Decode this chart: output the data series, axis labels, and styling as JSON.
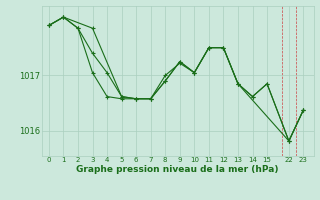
{
  "xlabel": "Graphe pression niveau de la mer (hPa)",
  "background_color": "#cce8dc",
  "line_color": "#1a6e1a",
  "grid_color": "#aacfbf",
  "ylim": [
    1015.55,
    1018.25
  ],
  "yticks": [
    1016,
    1017
  ],
  "xtick_positions": [
    0,
    1,
    2,
    3,
    4,
    5,
    6,
    7,
    8,
    9,
    10,
    11,
    12,
    13,
    14,
    15,
    22,
    23
  ],
  "xtick_labels": [
    "0",
    "1",
    "2",
    "3",
    "4",
    "5",
    "6",
    "7",
    "8",
    "9",
    "10",
    "11",
    "12",
    "13",
    "14",
    "15",
    "22",
    "23"
  ],
  "xlim": [
    -0.5,
    23.5
  ],
  "series1_x": [
    0,
    1,
    2,
    3,
    4,
    5,
    6,
    7,
    8,
    9,
    10,
    11,
    12,
    13,
    14,
    15,
    22,
    23
  ],
  "series1_y": [
    1017.9,
    1018.05,
    1017.85,
    1017.4,
    1017.05,
    1016.62,
    1016.58,
    1016.58,
    1016.9,
    1017.25,
    1017.05,
    1017.5,
    1017.5,
    1016.85,
    1016.62,
    1016.85,
    1015.82,
    1016.38
  ],
  "series2_x": [
    0,
    1,
    2,
    3,
    4,
    5,
    6,
    7,
    8,
    9,
    10,
    11,
    12,
    13,
    14,
    15,
    22,
    23
  ],
  "series2_y": [
    1017.9,
    1018.05,
    1017.85,
    1017.05,
    1016.62,
    1016.58,
    1016.58,
    1016.58,
    1017.0,
    1017.22,
    1017.05,
    1017.5,
    1017.5,
    1016.85,
    1016.62,
    1016.85,
    1015.82,
    1016.38
  ],
  "series3_x": [
    0,
    1,
    3,
    5,
    6,
    7,
    8,
    9,
    10,
    11,
    12,
    13,
    22,
    23
  ],
  "series3_y": [
    1017.9,
    1018.05,
    1017.85,
    1016.62,
    1016.58,
    1016.58,
    1016.9,
    1017.25,
    1017.05,
    1017.5,
    1017.5,
    1016.85,
    1015.82,
    1016.38
  ]
}
